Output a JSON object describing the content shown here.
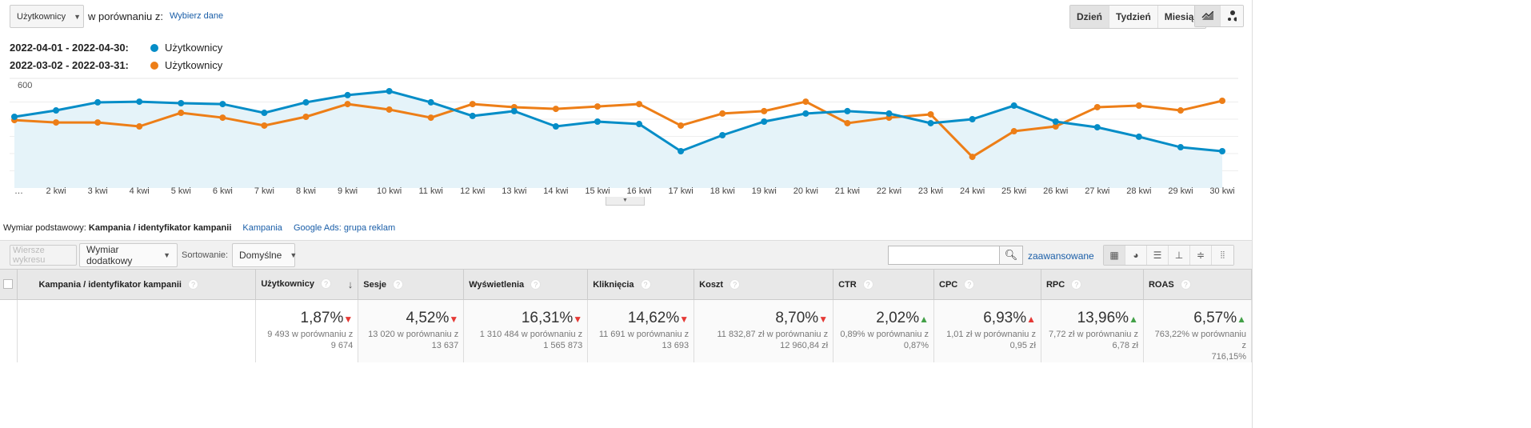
{
  "header": {
    "metric_select": "Użytkownicy",
    "compare_label": "w porównaniu z:",
    "compare_link": "Wybierz dane"
  },
  "legend": [
    {
      "range": "2022-04-01 - 2022-04-30:",
      "metric": "Użytkownicy",
      "color": "#058dc7"
    },
    {
      "range": "2022-03-02 - 2022-03-31:",
      "metric": "Użytkownicy",
      "color": "#ed7e17"
    }
  ],
  "period_buttons": [
    "Dzień",
    "Tydzień",
    "Miesiąc"
  ],
  "chart_type_icons": [
    "line-chart-icon",
    "motion-chart-icon"
  ],
  "chart_data": {
    "type": "line",
    "y_ticks": [
      "600",
      "400",
      "200"
    ],
    "ylim": [
      0,
      600
    ],
    "x_labels": [
      "…",
      "2 kwi",
      "3 kwi",
      "4 kwi",
      "5 kwi",
      "6 kwi",
      "7 kwi",
      "8 kwi",
      "9 kwi",
      "10 kwi",
      "11 kwi",
      "12 kwi",
      "13 kwi",
      "14 kwi",
      "15 kwi",
      "16 kwi",
      "17 kwi",
      "18 kwi",
      "19 kwi",
      "20 kwi",
      "21 kwi",
      "22 kwi",
      "23 kwi",
      "24 kwi",
      "25 kwi",
      "26 kwi",
      "27 kwi",
      "28 kwi",
      "29 kwi",
      "30 kwi"
    ],
    "series": [
      {
        "name": "Użytkownicy (2022-04-01 - 2022-04-30)",
        "color": "#058dc7",
        "values": [
          414,
          451,
          498,
          502,
          493,
          488,
          437,
          498,
          540,
          563,
          498,
          419,
          447,
          358,
          386,
          372,
          214,
          307,
          386,
          433,
          447,
          433,
          377,
          400,
          479,
          386,
          353,
          298,
          237,
          214
        ]
      },
      {
        "name": "Użytkownicy (2022-03-02 - 2022-03-31)",
        "color": "#ed7e17",
        "values": [
          395,
          381,
          381,
          358,
          437,
          409,
          363,
          414,
          488,
          456,
          409,
          488,
          470,
          460,
          474,
          488,
          363,
          433,
          447,
          502,
          377,
          409,
          428,
          181,
          330,
          358,
          470,
          479,
          451,
          507
        ]
      }
    ]
  },
  "dimension": {
    "label": "Wymiar podstawowy:",
    "active": "Kampania / identyfikator kampanii",
    "options": [
      "Kampania",
      "Google Ads: grupa reklam"
    ]
  },
  "toolbar": {
    "plot_rows": "Wiersze wykresu",
    "secondary": "Wymiar dodatkowy",
    "sort_label": "Sortowanie:",
    "sort_value": "Domyślne",
    "search_placeholder": "",
    "advanced": "zaawansowane"
  },
  "table": {
    "first_col": "Kampania / identyfikator kampanii",
    "columns": [
      {
        "name": "Użytkownicy",
        "pct": "1,87%",
        "dir": "down",
        "l1": "9 493 w porównaniu z",
        "l2": "9 674"
      },
      {
        "name": "Sesje",
        "pct": "4,52%",
        "dir": "down",
        "l1": "13 020 w porównaniu z",
        "l2": "13 637"
      },
      {
        "name": "Wyświetlenia",
        "pct": "16,31%",
        "dir": "down",
        "l1": "1 310 484 w porównaniu z",
        "l2": "1 565 873"
      },
      {
        "name": "Kliknięcia",
        "pct": "14,62%",
        "dir": "down",
        "l1": "11 691 w porównaniu z",
        "l2": "13 693"
      },
      {
        "name": "Koszt",
        "pct": "8,70%",
        "dir": "down",
        "l1": "11 832,87 zł w porównaniu z",
        "l2": "12 960,84 zł"
      },
      {
        "name": "CTR",
        "pct": "2,02%",
        "dir": "up",
        "l1": "0,89% w porównaniu z",
        "l2": "0,87%"
      },
      {
        "name": "CPC",
        "pct": "6,93%",
        "dir": "up-red",
        "l1": "1,01 zł w porównaniu z",
        "l2": "0,95 zł"
      },
      {
        "name": "RPC",
        "pct": "13,96%",
        "dir": "up",
        "l1": "7,72 zł w porównaniu z",
        "l2": "6,78 zł"
      },
      {
        "name": "ROAS",
        "pct": "6,57%",
        "dir": "up",
        "l1": "763,22% w porównaniu z",
        "l2": "716,15%"
      }
    ]
  }
}
